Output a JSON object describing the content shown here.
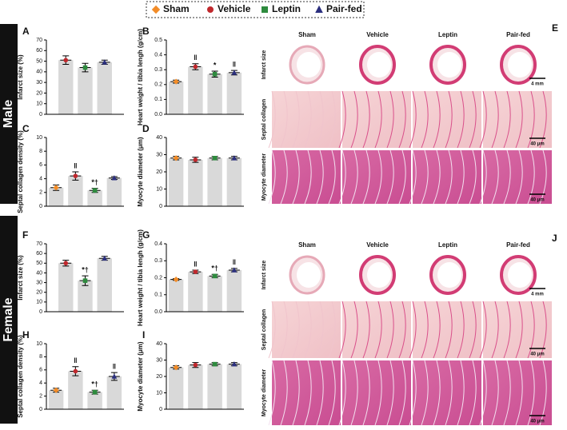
{
  "legend": [
    {
      "name": "Sham",
      "color": "#f28c28",
      "marker": "diamond"
    },
    {
      "name": "Vehicle",
      "color": "#c0282d",
      "marker": "circle"
    },
    {
      "name": "Leptin",
      "color": "#2e8b3e",
      "marker": "square"
    },
    {
      "name": "Pair-fed",
      "color": "#2b2f7e",
      "marker": "triangle"
    }
  ],
  "sections": [
    "Male",
    "Female"
  ],
  "chart_data": [
    {
      "type": "bar",
      "label": "A",
      "ylabel": "Infarct size (%)",
      "categories": [
        null,
        null,
        null
      ],
      "values": [
        51,
        44,
        49
      ],
      "errors": [
        4,
        4,
        2
      ],
      "annotations": [
        null,
        null,
        null
      ],
      "colors": [
        "#c0282d",
        "#2e8b3e",
        "#2b2f7e"
      ],
      "bar_color": "#d9d9d9",
      "ylim": [
        0,
        70
      ],
      "yticks": [
        0,
        10,
        20,
        30,
        40,
        50,
        60,
        70
      ]
    },
    {
      "type": "bar",
      "label": "B",
      "ylabel": "Heart weight / tibia lengh (g/cm)",
      "categories": [
        null,
        null,
        null,
        null
      ],
      "values": [
        0.22,
        0.32,
        0.27,
        0.28
      ],
      "errors": [
        0.01,
        0.02,
        0.02,
        0.015
      ],
      "annotations": [
        null,
        "‖",
        "*",
        "‖"
      ],
      "colors": [
        "#f28c28",
        "#c0282d",
        "#2e8b3e",
        "#2b2f7e"
      ],
      "bar_color": "#d9d9d9",
      "ylim": [
        0,
        0.5
      ],
      "yticks": [
        {
          "value": 0,
          "label": "0.0"
        },
        0.1,
        0.2,
        0.3,
        0.4,
        0.5
      ]
    },
    {
      "type": "bar",
      "label": "C",
      "ylabel": "Septal collagen density (%)",
      "categories": [
        null,
        null,
        null,
        null
      ],
      "values": [
        2.7,
        4.4,
        2.3,
        4.1
      ],
      "errors": [
        0.4,
        0.6,
        0.3,
        0.2
      ],
      "annotations": [
        null,
        "‖",
        "*†",
        null
      ],
      "colors": [
        "#f28c28",
        "#c0282d",
        "#2e8b3e",
        "#2b2f7e"
      ],
      "bar_color": "#d9d9d9",
      "ylim": [
        0,
        10
      ],
      "yticks": [
        0,
        2,
        4,
        6,
        8,
        10
      ]
    },
    {
      "type": "bar",
      "label": "D",
      "ylabel": "Myocyte diameter (μm)",
      "categories": [
        null,
        null,
        null,
        null
      ],
      "values": [
        28,
        27,
        28,
        28
      ],
      "errors": [
        1,
        1.5,
        1,
        1
      ],
      "annotations": [
        null,
        null,
        null,
        null
      ],
      "colors": [
        "#f28c28",
        "#c0282d",
        "#2e8b3e",
        "#2b2f7e"
      ],
      "bar_color": "#d9d9d9",
      "ylim": [
        0,
        40
      ],
      "yticks": [
        0,
        10,
        20,
        30,
        40
      ]
    },
    {
      "type": "bar",
      "label": "F",
      "ylabel": "Infarct size (%)",
      "categories": [
        null,
        null,
        null
      ],
      "values": [
        50,
        32,
        55
      ],
      "errors": [
        3,
        5,
        2
      ],
      "annotations": [
        null,
        "*†",
        null
      ],
      "colors": [
        "#c0282d",
        "#2e8b3e",
        "#2b2f7e"
      ],
      "bar_color": "#d9d9d9",
      "ylim": [
        0,
        70
      ],
      "yticks": [
        0,
        10,
        20,
        30,
        40,
        50,
        60,
        70
      ]
    },
    {
      "type": "bar",
      "label": "G",
      "ylabel": "Heart weight / tibia lengh (g/cm)",
      "categories": [
        null,
        null,
        null,
        null
      ],
      "values": [
        0.19,
        0.235,
        0.21,
        0.245
      ],
      "errors": [
        0.005,
        0.01,
        0.01,
        0.01
      ],
      "annotations": [
        null,
        "‖",
        "*†",
        "‖"
      ],
      "colors": [
        "#f28c28",
        "#c0282d",
        "#2e8b3e",
        "#2b2f7e"
      ],
      "bar_color": "#d9d9d9",
      "ylim": [
        0,
        0.4
      ],
      "yticks": [
        {
          "value": 0,
          "label": "0.0"
        },
        0.1,
        0.2,
        0.3,
        0.4
      ]
    },
    {
      "type": "bar",
      "label": "H",
      "ylabel": "Septal collagen density (%)",
      "categories": [
        null,
        null,
        null,
        null
      ],
      "values": [
        2.9,
        5.8,
        2.6,
        5.0
      ],
      "errors": [
        0.3,
        0.7,
        0.3,
        0.6
      ],
      "annotations": [
        null,
        "‖",
        "*†",
        "‖"
      ],
      "colors": [
        "#f28c28",
        "#c0282d",
        "#2e8b3e",
        "#2b2f7e"
      ],
      "bar_color": "#d9d9d9",
      "ylim": [
        0,
        10
      ],
      "yticks": [
        0,
        2,
        4,
        6,
        8,
        10
      ]
    },
    {
      "type": "bar",
      "label": "I",
      "ylabel": "Myocyte diameter (μm)",
      "categories": [
        null,
        null,
        null,
        null
      ],
      "values": [
        25.5,
        27,
        27.5,
        27.5
      ],
      "errors": [
        1,
        1.5,
        1,
        1
      ],
      "annotations": [
        null,
        null,
        null,
        null
      ],
      "colors": [
        "#f28c28",
        "#c0282d",
        "#2e8b3e",
        "#2b2f7e"
      ],
      "bar_color": "#d9d9d9",
      "ylim": [
        0,
        40
      ],
      "yticks": [
        0,
        10,
        20,
        30,
        40
      ]
    }
  ],
  "histology": [
    {
      "label": "E",
      "columns": [
        "Sham",
        "Vehicle",
        "Leptin",
        "Pair-fed"
      ],
      "rows": [
        "Infarct size",
        "Septal collagen",
        "Myocyte diameter"
      ],
      "scale_bars": [
        "4 mm",
        "40 μm",
        "40 μm"
      ]
    },
    {
      "label": "J",
      "columns": [
        "Sham",
        "Vehicle",
        "Leptin",
        "Pair-fed"
      ],
      "rows": [
        "Infarct size",
        "Septal collagen",
        "Myocyte diameter"
      ],
      "scale_bars": [
        "4 mm",
        "40 μm",
        "40 μm"
      ]
    }
  ]
}
